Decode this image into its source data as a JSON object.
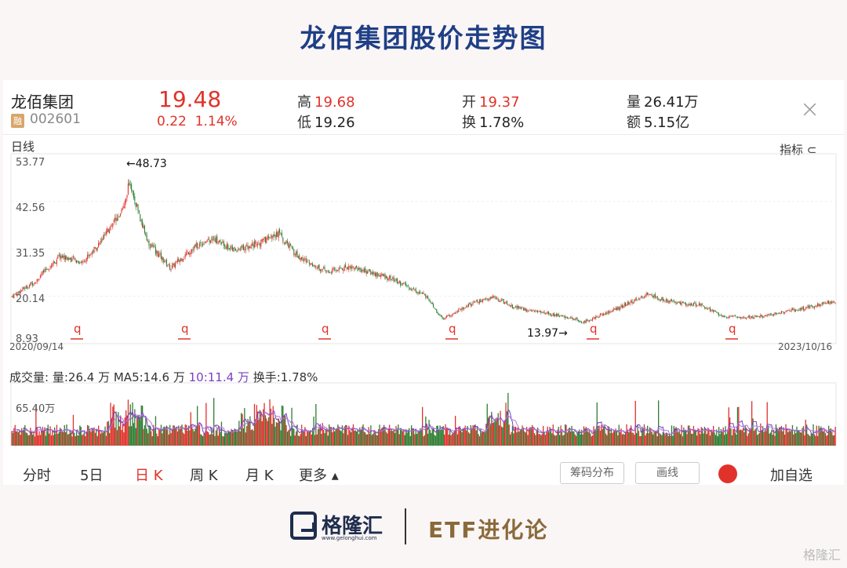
{
  "title": "龙佰集团股价走势图",
  "quote": {
    "name": "龙佰集团",
    "badge": "融",
    "code": "002601",
    "price": "19.48",
    "change": "0.22",
    "change_pct": "1.14%",
    "high_label": "高",
    "high": "19.68",
    "low_label": "低",
    "low": "19.26",
    "open_label": "开",
    "open": "19.37",
    "turnover_label": "换",
    "turnover": "1.78%",
    "volume_label": "量",
    "volume": "26.41万",
    "amount_label": "额",
    "amount": "5.15亿",
    "close_glyph": "×"
  },
  "chart": {
    "period_label": "日线",
    "indicator_label": "指标",
    "y_ticks": [
      "53.77",
      "42.56",
      "31.35",
      "20.14",
      "8.93"
    ],
    "x_start": "2020/09/14",
    "x_end": "2023/10/16",
    "max_annotation": "←48.73",
    "min_annotation": "13.97→",
    "marker_glyph": "q"
  },
  "volume": {
    "label": "成交量:",
    "vol": "量:26.4 万",
    "ma5": "MA5:14.6 万",
    "ma10": "10:11.4 万",
    "turnover": "换手:1.78%",
    "y_tick": "65.40万"
  },
  "tabs": [
    {
      "label": "分时"
    },
    {
      "label": "5日"
    },
    {
      "label": "日 K"
    },
    {
      "label": "周 K"
    },
    {
      "label": "月 K"
    },
    {
      "label": "更多 ▴"
    }
  ],
  "buttons": {
    "chips": "筹码分布",
    "draw": "画线",
    "add": "加自选"
  },
  "footer": {
    "logo": "格隆汇",
    "url": "www.gelonghui.com",
    "etf": "ETF进化论",
    "watermark": "格隆汇"
  },
  "colors": {
    "up": "#e0322b",
    "down": "#2f7d32",
    "title": "#1f3f86",
    "ma5": "#7b3fbf",
    "ma10": "#b07ad8"
  },
  "chart_data": {
    "type": "line",
    "y_range": [
      8.93,
      53.77
    ],
    "x_range": [
      "2020/09/14",
      "2023/10/16"
    ],
    "price_path": [
      [
        "2020/09/14",
        20.5
      ],
      [
        "2020/10/15",
        24.0
      ],
      [
        "2020/11/20",
        30.5
      ],
      [
        "2020/12/20",
        29.0
      ],
      [
        "2021/01/15",
        34.0
      ],
      [
        "2021/02/19",
        44.0
      ],
      [
        "2021/02/22",
        48.73
      ],
      [
        "2021/03/20",
        34.0
      ],
      [
        "2021/04/20",
        27.5
      ],
      [
        "2021/05/20",
        32.5
      ],
      [
        "2021/06/15",
        35.0
      ],
      [
        "2021/07/15",
        32.0
      ],
      [
        "2021/08/15",
        33.5
      ],
      [
        "2021/09/15",
        36.0
      ],
      [
        "2021/10/10",
        30.5
      ],
      [
        "2021/11/20",
        26.5
      ],
      [
        "2021/12/20",
        28.0
      ],
      [
        "2022/02/15",
        25.0
      ],
      [
        "2022/04/01",
        21.0
      ],
      [
        "2022/04/26",
        15.0
      ],
      [
        "2022/06/01",
        18.5
      ],
      [
        "2022/07/05",
        20.5
      ],
      [
        "2022/08/01",
        18.0
      ],
      [
        "2022/10/25",
        15.0
      ],
      [
        "2022/11/01",
        13.97
      ],
      [
        "2022/12/20",
        17.5
      ],
      [
        "2023/02/01",
        21.0
      ],
      [
        "2023/03/10",
        19.0
      ],
      [
        "2023/04/15",
        18.5
      ],
      [
        "2023/05/15",
        15.5
      ],
      [
        "2023/07/01",
        15.5
      ],
      [
        "2023/08/15",
        17.0
      ],
      [
        "2023/10/16",
        19.48
      ]
    ],
    "volume_max_label": "65.40万"
  }
}
